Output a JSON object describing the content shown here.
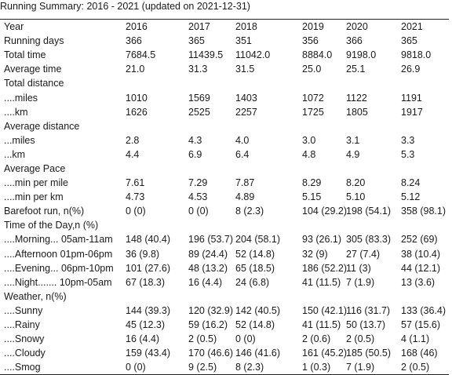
{
  "title": "Running Summary: 2016 - 2021 (updated on 2021-12-31)",
  "columns": [
    "Year",
    "2016",
    "2017",
    "2018",
    "2019",
    "2020",
    "2021"
  ],
  "rows": [
    {
      "label": "Running days",
      "values": [
        "366",
        "365",
        "351",
        "356",
        "366",
        "365"
      ]
    },
    {
      "label": "Total time",
      "values": [
        "7684.5",
        "11439.5",
        "11042.0",
        "8884.0",
        "9198.0",
        "9818.0"
      ]
    },
    {
      "label": "Average time",
      "values": [
        "21.0",
        "31.3",
        "31.5",
        "25.0",
        "25.1",
        "26.9"
      ]
    },
    {
      "label": "Total distance",
      "values": [
        "",
        "",
        "",
        "",
        "",
        ""
      ]
    },
    {
      "label": "....miles",
      "values": [
        "1010",
        "1569",
        "1403",
        "1072",
        "1122",
        "1191"
      ]
    },
    {
      "label": "....km",
      "values": [
        "1626",
        "2525",
        "2257",
        "1725",
        "1805",
        "1917"
      ]
    },
    {
      "label": "Average distance",
      "values": [
        "",
        "",
        "",
        "",
        "",
        ""
      ]
    },
    {
      "label": "...miles",
      "values": [
        "2.8",
        "4.3",
        "4.0",
        "3.0",
        "3.1",
        "3.3"
      ]
    },
    {
      "label": "...km",
      "values": [
        "4.4",
        "6.9",
        "6.4",
        "4.8",
        "4.9",
        "5.3"
      ]
    },
    {
      "label": "Average Pace",
      "values": [
        "",
        "",
        "",
        "",
        "",
        ""
      ]
    },
    {
      "label": "....min per mile",
      "values": [
        "7.61",
        "7.29",
        "7.87",
        "8.29",
        "8.20",
        "8.24"
      ]
    },
    {
      "label": "....min per km",
      "values": [
        "4.73",
        "4.53",
        "4.89",
        "5.15",
        "5.10",
        "5.12"
      ]
    },
    {
      "label": "Barefoot run, n(%)",
      "values": [
        "0 (0)",
        "0 (0)",
        "8 (2.3)",
        "104 (29.2)",
        "198 (54.1)",
        "358 (98.1)"
      ]
    },
    {
      "label": "Time of the Day,n (%)",
      "values": [
        "",
        "",
        "",
        "",
        "",
        ""
      ]
    },
    {
      "label": "....Morning... 05am-11am",
      "values": [
        "148 (40.4)",
        "196 (53.7)",
        "204 (58.1)",
        "93 (26.1)",
        "305 (83.3)",
        "252 (69)"
      ]
    },
    {
      "label": "....Afternoon 01pm-06pm",
      "values": [
        "36 (9.8)",
        "89 (24.4)",
        "52 (14.8)",
        "32 (9)",
        "27 (7.4)",
        "38 (10.4)"
      ]
    },
    {
      "label": "....Evening... 06pm-10pm",
      "values": [
        "101 (27.6)",
        "48 (13.2)",
        "65 (18.5)",
        "186 (52.2)",
        "11 (3)",
        "44 (12.1)"
      ]
    },
    {
      "label": "....Night....... 10pm-05am",
      "values": [
        "67 (18.3)",
        "16 (4.4)",
        "24 (6.8)",
        "41 (11.5)",
        "7 (1.9)",
        "13 (3.6)"
      ]
    },
    {
      "label": "Weather, n(%)",
      "values": [
        "",
        "",
        "",
        "",
        "",
        ""
      ]
    },
    {
      "label": "....Sunny",
      "values": [
        "144 (39.3)",
        "120 (32.9)",
        "142 (40.5)",
        "150 (42.1)",
        "116 (31.7)",
        "133 (36.4)"
      ]
    },
    {
      "label": "....Rainy",
      "values": [
        "45 (12.3)",
        "59 (16.2)",
        "52 (14.8)",
        "41 (11.5)",
        "50 (13.7)",
        "57 (15.6)"
      ]
    },
    {
      "label": "....Snowy",
      "values": [
        "16 (4.4)",
        "2 (0.5)",
        "0 (0)",
        "2 (0.6)",
        "2 (0.5)",
        "4 (1.1)"
      ]
    },
    {
      "label": "....Cloudy",
      "values": [
        "159 (43.4)",
        "170 (46.6)",
        "146 (41.6)",
        "161 (45.2)",
        "185 (50.5)",
        "168 (46)"
      ]
    },
    {
      "label": "....Smog",
      "values": [
        "0 (0)",
        "9 (2.5)",
        "8 (2.3)",
        "1 (0.3)",
        "7 (1.9)",
        "2 (0.5)"
      ]
    }
  ]
}
